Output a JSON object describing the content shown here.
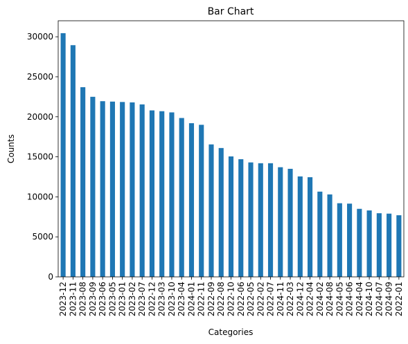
{
  "chart_data": {
    "type": "bar",
    "title": "Bar Chart",
    "x_label": "Categories",
    "y_label": "Counts",
    "categories": [
      "2023-12",
      "2023-11",
      "2023-08",
      "2023-09",
      "2023-06",
      "2023-05",
      "2023-01",
      "2023-02",
      "2023-07",
      "2022-12",
      "2023-03",
      "2023-10",
      "2023-04",
      "2024-01",
      "2022-11",
      "2022-09",
      "2022-08",
      "2022-10",
      "2022-06",
      "2022-05",
      "2022-02",
      "2022-07",
      "2024-11",
      "2022-03",
      "2024-12",
      "2022-04",
      "2024-02",
      "2024-08",
      "2024-05",
      "2024-06",
      "2024-04",
      "2024-10",
      "2024-07",
      "2024-09",
      "2022-01"
    ],
    "values": [
      30450,
      28950,
      23700,
      22500,
      21950,
      21900,
      21850,
      21800,
      21550,
      20800,
      20700,
      20550,
      19850,
      19200,
      19000,
      16550,
      16100,
      15050,
      14700,
      14300,
      14200,
      14200,
      13700,
      13500,
      12550,
      12450,
      10650,
      10300,
      9200,
      9150,
      8500,
      8300,
      7950,
      7900,
      7700
    ],
    "color": "#1f77b4",
    "ylim": [
      0,
      32000
    ],
    "yticks": [
      0,
      5000,
      10000,
      15000,
      20000,
      25000,
      30000
    ],
    "grid": false
  }
}
